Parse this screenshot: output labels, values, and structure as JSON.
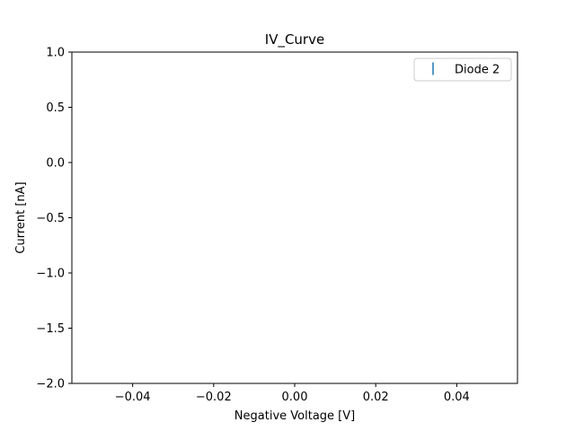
{
  "chart_data": {
    "type": "scatter",
    "title": "IV_Curve",
    "xlabel": "Negative Voltage [V]",
    "ylabel": "Current [nA]",
    "xlim": [
      -0.055,
      0.055
    ],
    "ylim": [
      -2.0,
      1.0
    ],
    "xticks": [
      -0.04,
      -0.02,
      0.0,
      0.02,
      0.04
    ],
    "xtick_labels": [
      "−0.04",
      "−0.02",
      "0.00",
      "0.02",
      "0.04"
    ],
    "yticks": [
      1.0,
      0.5,
      0.0,
      -0.5,
      -1.0,
      -1.5,
      -2.0
    ],
    "ytick_labels": [
      "1.0",
      "0.5",
      "0.0",
      "−0.5",
      "−1.0",
      "−1.5",
      "−2.0"
    ],
    "grid": false,
    "legend_position": "top-right",
    "series": [
      {
        "name": "Diode 2",
        "color": "#1f77b4",
        "marker": "errorbar",
        "x": [],
        "y": []
      }
    ]
  }
}
